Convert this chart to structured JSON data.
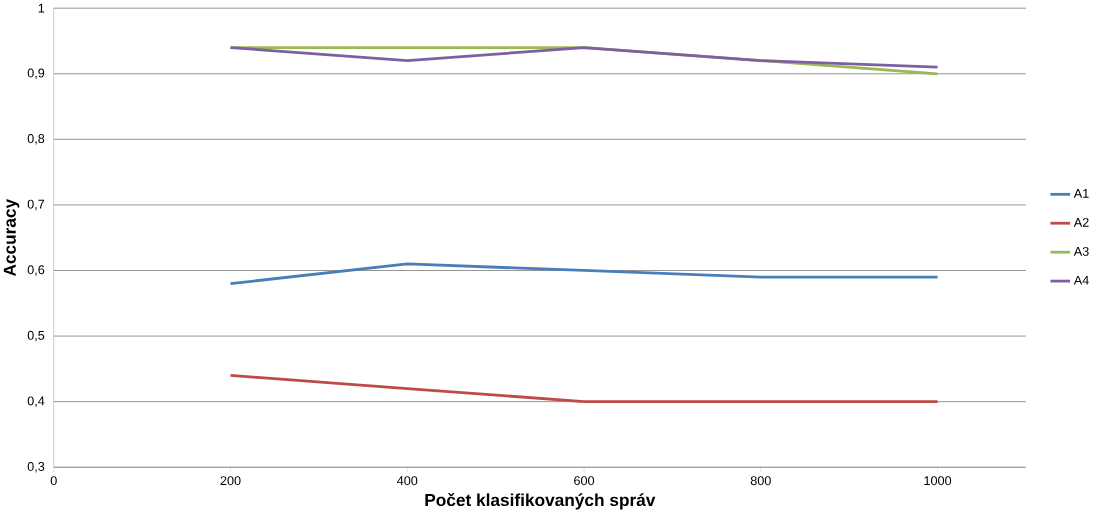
{
  "chart_data": {
    "type": "line",
    "xlabel": "Počet klasifikovaných správ",
    "ylabel": "Accuracy",
    "x": [
      200,
      400,
      600,
      800,
      1000
    ],
    "series": [
      {
        "name": "A1",
        "color": "#4a7ebb",
        "values": [
          0.58,
          0.61,
          0.6,
          0.59,
          0.59
        ]
      },
      {
        "name": "A2",
        "color": "#be4b48",
        "values": [
          0.44,
          0.42,
          0.4,
          0.4,
          0.4
        ]
      },
      {
        "name": "A3",
        "color": "#98b954",
        "values": [
          0.94,
          0.94,
          0.94,
          0.92,
          0.9
        ]
      },
      {
        "name": "A4",
        "color": "#7d60a0",
        "values": [
          0.94,
          0.92,
          0.94,
          0.92,
          0.91
        ]
      }
    ],
    "xlim": [
      0,
      1100
    ],
    "xticks": [
      0,
      200,
      400,
      600,
      800,
      1000
    ],
    "ylim": [
      0.3,
      1
    ],
    "yticks": [
      {
        "value": 0.3,
        "label": "0,3"
      },
      {
        "value": 0.4,
        "label": "0,4"
      },
      {
        "value": 0.5,
        "label": "0,5"
      },
      {
        "value": 0.6,
        "label": "0,6"
      },
      {
        "value": 0.7,
        "label": "0,7"
      },
      {
        "value": 0.8,
        "label": "0,8"
      },
      {
        "value": 0.9,
        "label": "0,9"
      },
      {
        "value": 1,
        "label": "1"
      }
    ],
    "grid": "y",
    "legend": "right",
    "marker": "none",
    "line_style": "solid"
  }
}
